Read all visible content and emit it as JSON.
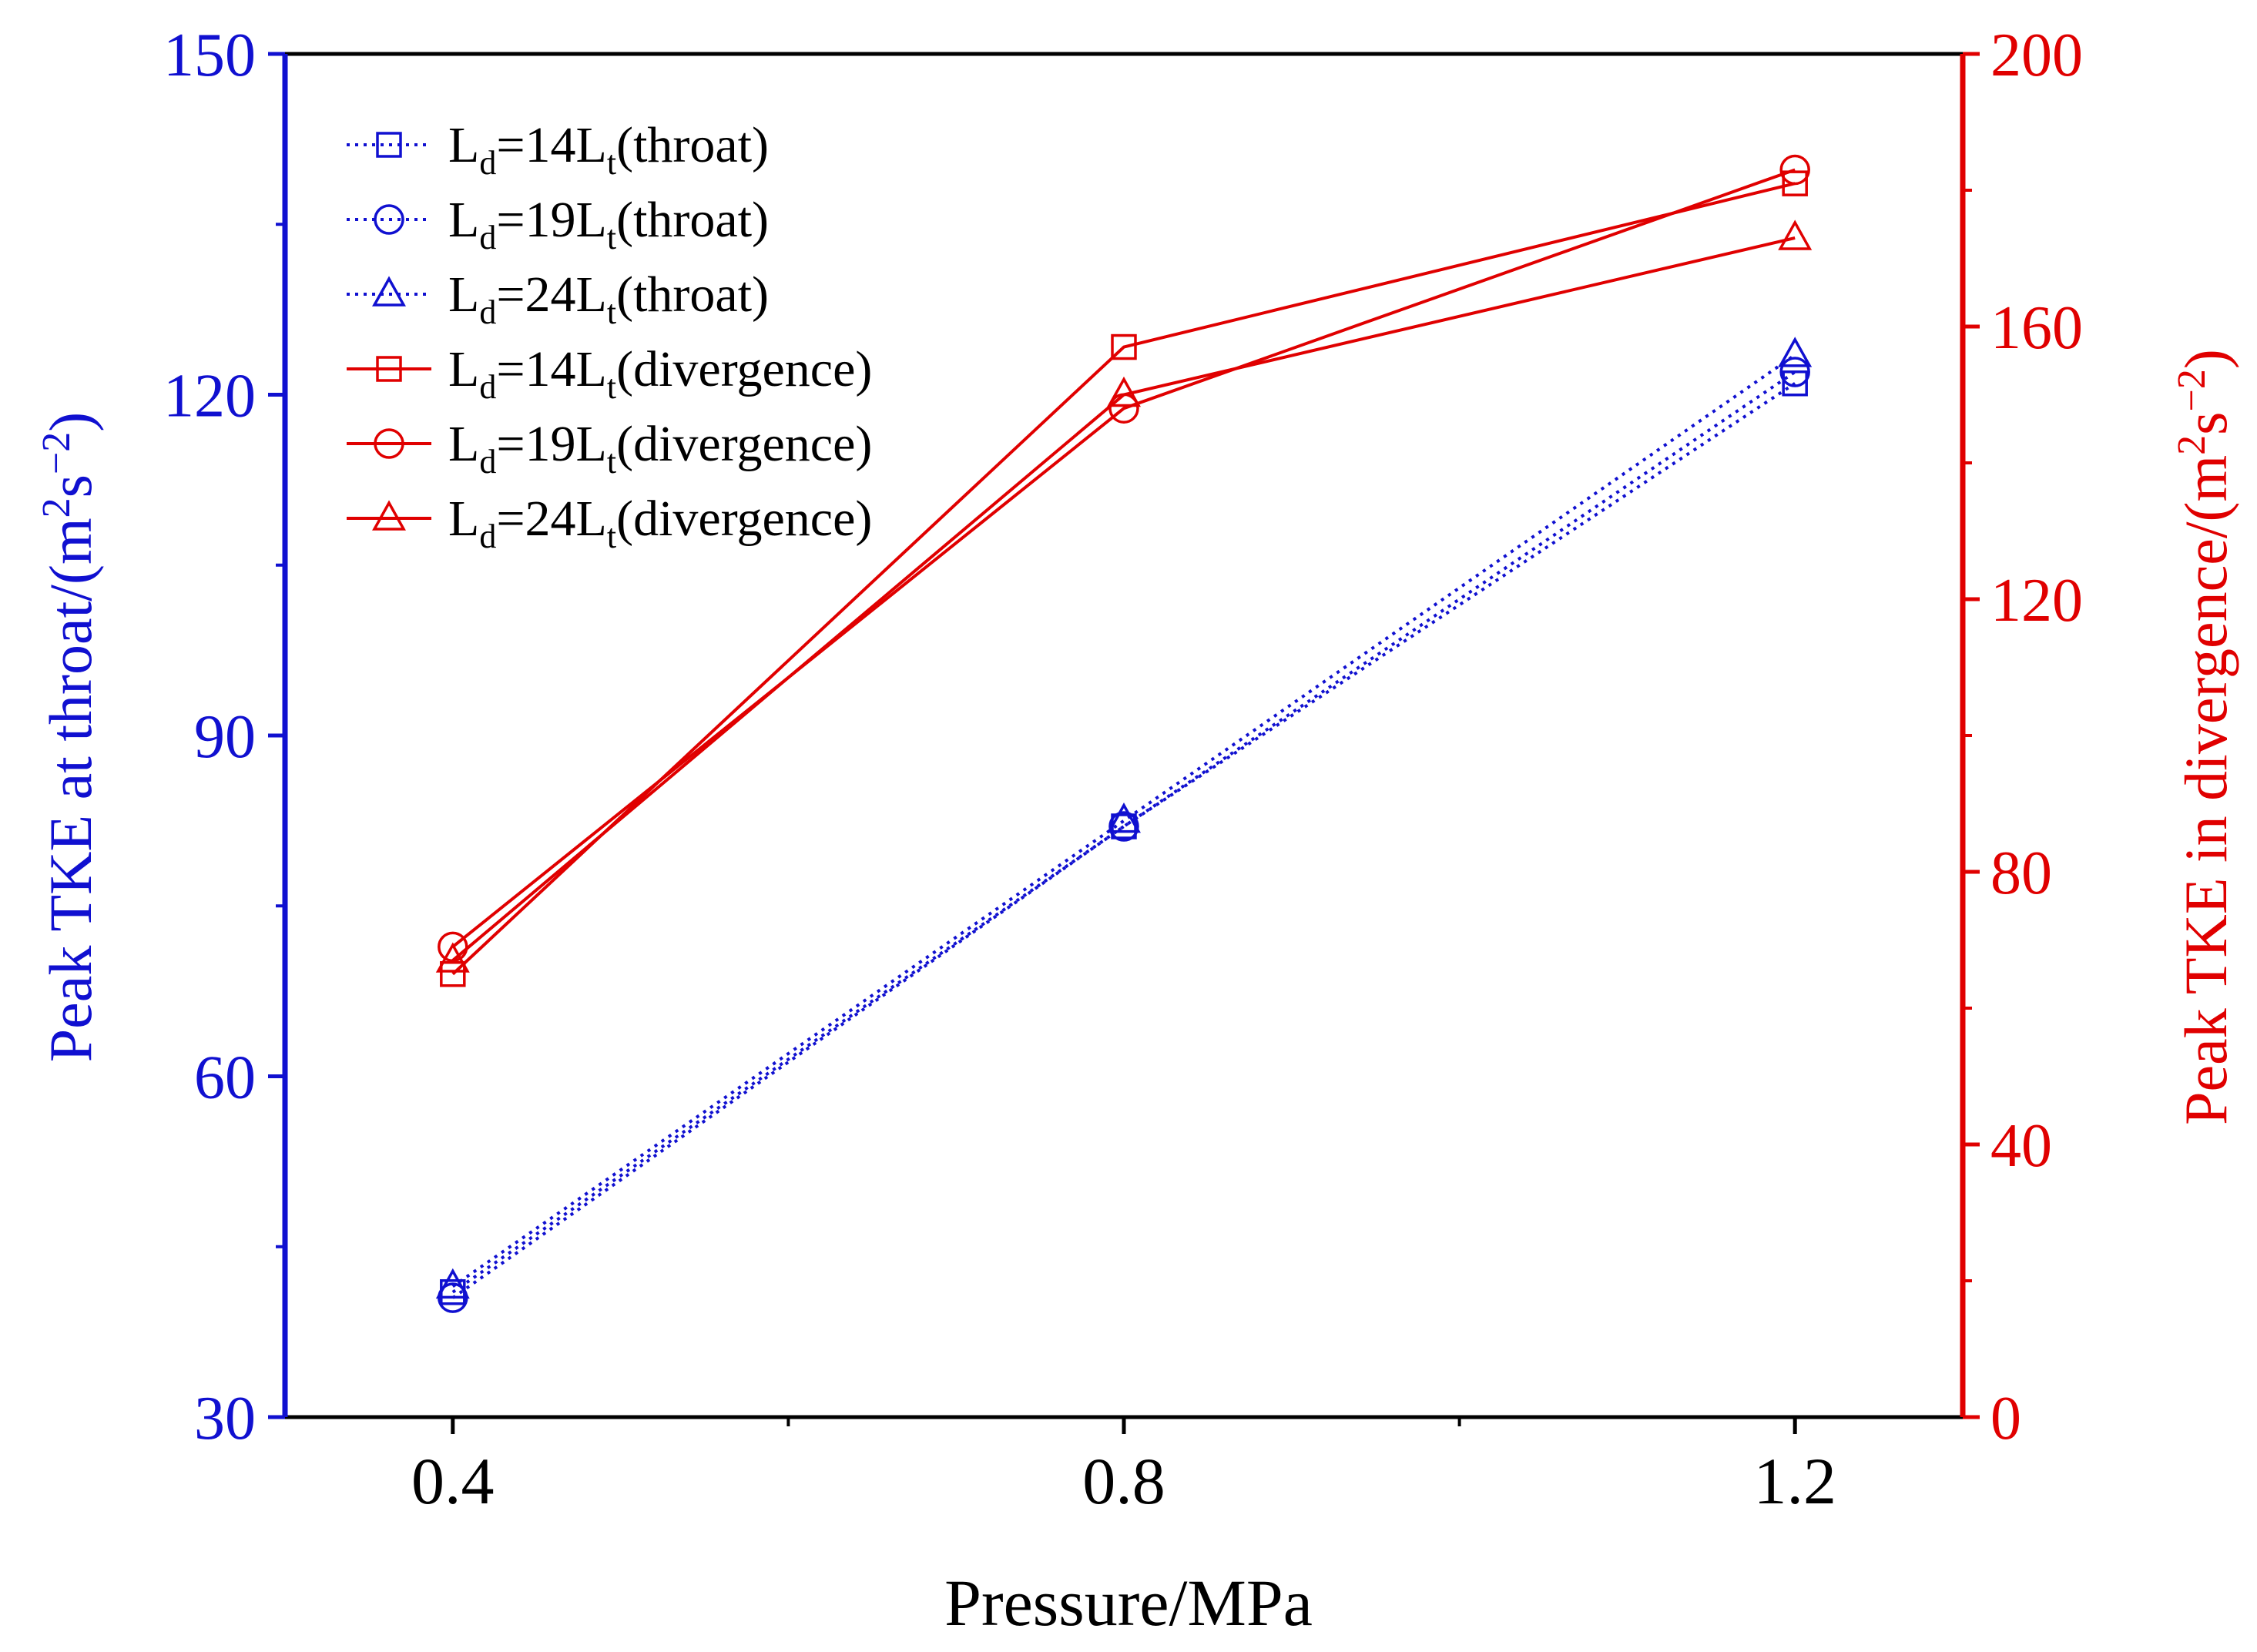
{
  "chart_data": {
    "type": "line",
    "title": "",
    "x": [
      0.4,
      0.8,
      1.2
    ],
    "xlabel": "Pressure/MPa",
    "xlim": [
      0.3,
      1.3
    ],
    "x_ticks": [
      "0.4",
      "0.8",
      "1.2"
    ],
    "y_left": {
      "label_base": "Peak TKE at throat/(m",
      "label_sup1": "2",
      "label_mid": "s",
      "label_sup2": "−2",
      "label_end": ")",
      "lim": [
        30,
        150
      ],
      "ticks": [
        "30",
        "60",
        "90",
        "120",
        "150"
      ],
      "color": "#1010d0"
    },
    "y_right": {
      "label_base": "Peak TKE in divergence/(m",
      "label_sup1": "2",
      "label_mid": "s",
      "label_sup2": "−2",
      "label_end": ")",
      "lim": [
        0,
        200
      ],
      "ticks": [
        "0",
        "40",
        "80",
        "120",
        "160",
        "200"
      ],
      "color": "#e00000"
    },
    "grid": false,
    "legend_position": "top-left",
    "series": [
      {
        "L": "L",
        "d": "d",
        "mid": "=14L",
        "t": "t",
        "suffix": "(throat)",
        "axis": "left",
        "marker": "square",
        "dash": true,
        "color": "#1010d0",
        "values": [
          41,
          82,
          121
        ]
      },
      {
        "L": "L",
        "d": "d",
        "mid": "=19L",
        "t": "t",
        "suffix": "(throat)",
        "axis": "left",
        "marker": "circle",
        "dash": true,
        "color": "#1010d0",
        "values": [
          40.5,
          82,
          122
        ]
      },
      {
        "L": "L",
        "d": "d",
        "mid": "=24L",
        "t": "t",
        "suffix": "(throat)",
        "axis": "left",
        "marker": "triangle",
        "dash": true,
        "color": "#1010d0",
        "values": [
          41.5,
          82.5,
          123.5
        ]
      },
      {
        "L": "L",
        "d": "d",
        "mid": "=14L",
        "t": "t",
        "suffix": "(divergence)",
        "axis": "right",
        "marker": "square",
        "dash": false,
        "color": "#e00000",
        "values": [
          65,
          157,
          181
        ]
      },
      {
        "L": "L",
        "d": "d",
        "mid": "=19L",
        "t": "t",
        "suffix": "(divergence)",
        "axis": "right",
        "marker": "circle",
        "dash": false,
        "color": "#e00000",
        "values": [
          69,
          148,
          183
        ]
      },
      {
        "L": "L",
        "d": "d",
        "mid": "=24L",
        "t": "t",
        "suffix": "(divergence)",
        "axis": "right",
        "marker": "triangle",
        "dash": false,
        "color": "#e00000",
        "values": [
          67,
          150,
          173
        ]
      }
    ]
  }
}
